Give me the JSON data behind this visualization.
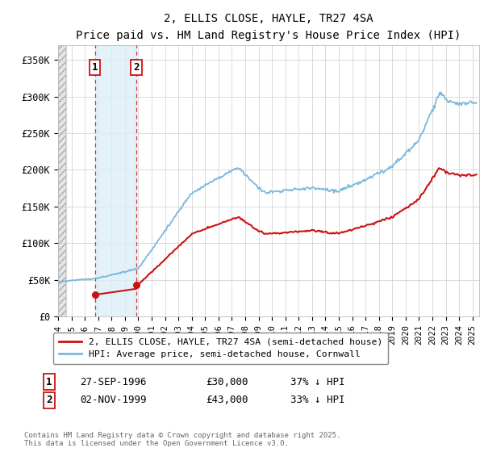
{
  "title": "2, ELLIS CLOSE, HAYLE, TR27 4SA",
  "subtitle": "Price paid vs. HM Land Registry's House Price Index (HPI)",
  "ylim": [
    0,
    370000
  ],
  "yticks": [
    0,
    50000,
    100000,
    150000,
    200000,
    250000,
    300000,
    350000
  ],
  "ytick_labels": [
    "£0",
    "£50K",
    "£100K",
    "£150K",
    "£200K",
    "£250K",
    "£300K",
    "£350K"
  ],
  "hpi_color": "#7ab8de",
  "price_color": "#cc1111",
  "t1_year": 1996.75,
  "t1_price": 30000,
  "t2_year": 1999.84,
  "t2_price": 43000,
  "legend_label_red": "2, ELLIS CLOSE, HAYLE, TR27 4SA (semi-detached house)",
  "legend_label_blue": "HPI: Average price, semi-detached house, Cornwall",
  "footer": "Contains HM Land Registry data © Crown copyright and database right 2025.\nThis data is licensed under the Open Government Licence v3.0.",
  "xlim_start": 1994.0,
  "xlim_end": 2025.5,
  "transaction_table": [
    {
      "label": "1",
      "date": "27-SEP-1996",
      "price": "£30,000",
      "hpi": "37% ↓ HPI"
    },
    {
      "label": "2",
      "date": "02-NOV-1999",
      "price": "£43,000",
      "hpi": "33% ↓ HPI"
    }
  ]
}
